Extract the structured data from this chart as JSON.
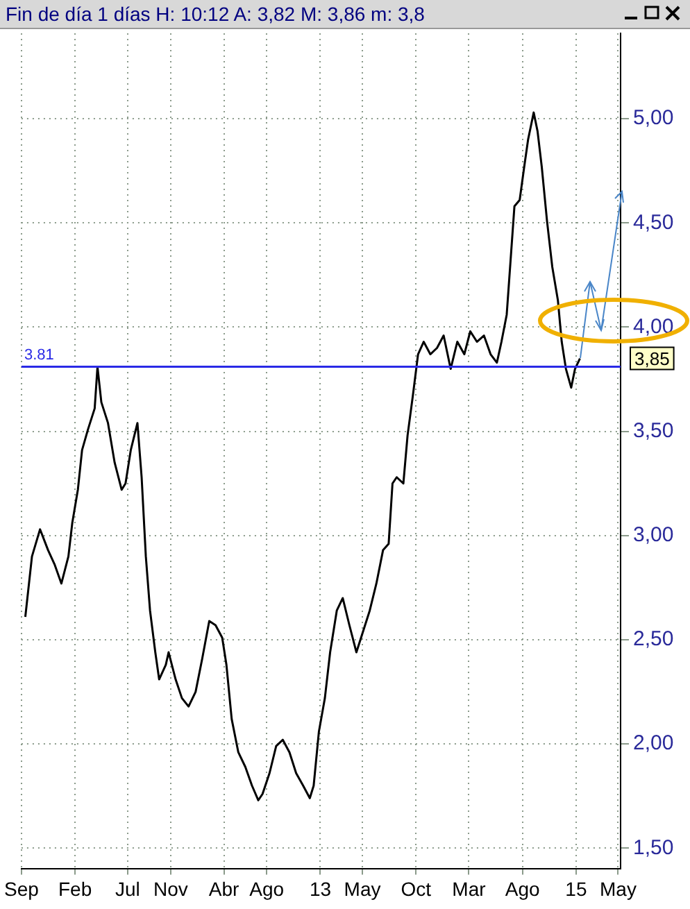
{
  "chart_data": {
    "type": "line",
    "title": "Fin de día 1 días H: 10:12 A: 3,82 M: 3,86 m: 3,8",
    "x": [
      "2010-09-12",
      "2010-10-01",
      "2010-10-24",
      "2010-11-16",
      "2010-12-05",
      "2010-12-24",
      "2011-01-13",
      "2011-01-24",
      "2011-02-09",
      "2011-02-21",
      "2011-03-10",
      "2011-03-29",
      "2011-04-06",
      "2011-04-17",
      "2011-05-06",
      "2011-05-25",
      "2011-06-14",
      "2011-06-25",
      "2011-07-10",
      "2011-07-29",
      "2011-08-10",
      "2011-08-22",
      "2011-09-03",
      "2011-09-18",
      "2011-09-29",
      "2011-10-18",
      "2011-10-26",
      "2011-11-15",
      "2011-12-03",
      "2011-12-22",
      "2012-01-11",
      "2012-01-30",
      "2012-02-19",
      "2012-03-08",
      "2012-03-27",
      "2012-04-08",
      "2012-04-23",
      "2012-05-12",
      "2012-06-01",
      "2012-06-20",
      "2012-07-08",
      "2012-07-20",
      "2012-08-09",
      "2012-08-28",
      "2012-09-16",
      "2012-10-05",
      "2012-10-24",
      "2012-11-13",
      "2012-12-02",
      "2012-12-13",
      "2012-12-28",
      "2013-01-14",
      "2013-01-29",
      "2013-02-17",
      "2013-03-06",
      "2013-03-25",
      "2013-04-14",
      "2013-05-03",
      "2013-05-22",
      "2013-06-10",
      "2013-06-29",
      "2013-07-15",
      "2013-07-26",
      "2013-08-07",
      "2013-08-26",
      "2013-09-07",
      "2013-09-22",
      "2013-10-07",
      "2013-10-23",
      "2013-11-11",
      "2013-11-30",
      "2013-12-19",
      "2014-01-08",
      "2014-01-27",
      "2014-02-16",
      "2014-03-05",
      "2014-03-24",
      "2014-04-13",
      "2014-05-02",
      "2014-05-20",
      "2014-06-02",
      "2014-06-17",
      "2014-06-28",
      "2014-07-09",
      "2014-07-24",
      "2014-08-06",
      "2014-08-17",
      "2014-09-02",
      "2014-09-13",
      "2014-09-25",
      "2014-10-10",
      "2014-10-25",
      "2014-11-10",
      "2014-11-21",
      "2014-12-03",
      "2014-12-18",
      "2014-12-29",
      "2015-01-12"
    ],
    "series": [
      {
        "color": "#000000",
        "values": [
          2.61,
          2.9,
          3.03,
          2.93,
          2.86,
          2.77,
          2.9,
          3.06,
          3.22,
          3.41,
          3.51,
          3.61,
          3.81,
          3.64,
          3.54,
          3.35,
          3.22,
          3.25,
          3.41,
          3.54,
          3.28,
          2.9,
          2.64,
          2.44,
          2.31,
          2.38,
          2.44,
          2.31,
          2.22,
          2.18,
          2.25,
          2.41,
          2.59,
          2.57,
          2.51,
          2.38,
          2.12,
          1.96,
          1.89,
          1.8,
          1.73,
          1.76,
          1.86,
          1.99,
          2.02,
          1.96,
          1.86,
          1.8,
          1.74,
          1.8,
          2.06,
          2.22,
          2.44,
          2.64,
          2.7,
          2.57,
          2.44,
          2.54,
          2.64,
          2.77,
          2.93,
          2.96,
          3.25,
          3.28,
          3.25,
          3.48,
          3.67,
          3.87,
          3.93,
          3.87,
          3.9,
          3.96,
          3.8,
          3.93,
          3.87,
          3.98,
          3.93,
          3.96,
          3.87,
          3.83,
          3.93,
          4.06,
          4.32,
          4.58,
          4.61,
          4.77,
          4.9,
          5.03,
          4.94,
          4.77,
          4.51,
          4.29,
          4.13,
          3.93,
          3.8,
          3.71,
          3.8,
          3.85
        ]
      }
    ],
    "xlim": [
      "2010-09-01",
      "2015-05-08"
    ],
    "xticks": [
      {
        "value": "2010-09-01",
        "label": "Sep"
      },
      {
        "value": "2011-02-01",
        "label": "Feb"
      },
      {
        "value": "2011-07-01",
        "label": "Jul"
      },
      {
        "value": "2011-11-01",
        "label": "Nov"
      },
      {
        "value": "2012-04-01",
        "label": "Abr"
      },
      {
        "value": "2012-08-01",
        "label": "Ago"
      },
      {
        "value": "2013-01-01",
        "label": "13"
      },
      {
        "value": "2013-05-01",
        "label": "May"
      },
      {
        "value": "2013-10-01",
        "label": "Oct"
      },
      {
        "value": "2014-03-01",
        "label": "Mar"
      },
      {
        "value": "2014-08-01",
        "label": "Ago"
      },
      {
        "value": "2015-01-01",
        "label": "15"
      },
      {
        "value": "2015-05-01",
        "label": "May"
      }
    ],
    "ylim": [
      1.4,
      5.41
    ],
    "yticks": [
      {
        "value": 1.5,
        "label": "1,50"
      },
      {
        "value": 2,
        "label": "2,00"
      },
      {
        "value": 2.5,
        "label": "2,50"
      },
      {
        "value": 3,
        "label": "3,00"
      },
      {
        "value": 3.5,
        "label": "3,50"
      },
      {
        "value": 4,
        "label": "4,00"
      },
      {
        "value": 4.5,
        "label": "4,50"
      },
      {
        "value": 5,
        "label": "5,00"
      }
    ],
    "ref_lines": [
      {
        "axis": "y",
        "value": 3.81,
        "label": "3.81",
        "color": "#2a2ae6"
      }
    ],
    "annotations": [
      "3,85"
    ],
    "grid": true,
    "legend": false,
    "marker": "none",
    "line_style": "solid"
  }
}
